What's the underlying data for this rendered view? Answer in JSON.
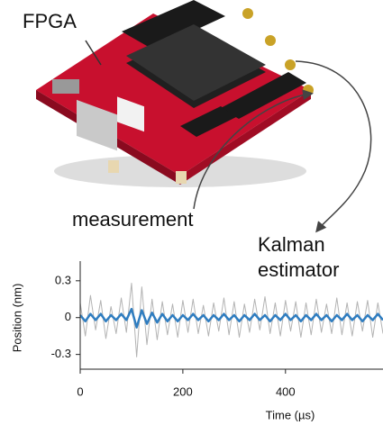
{
  "chart_data": {
    "type": "line",
    "annotation": "FPGA",
    "xlabel": "Time (µs)",
    "ylabel": "Position (nm)",
    "x": [
      0,
      10,
      20,
      30,
      40,
      50,
      60,
      70,
      80,
      90,
      100,
      110,
      120,
      130,
      140,
      150,
      160,
      170,
      180,
      190,
      200,
      210,
      220,
      230,
      240,
      250,
      260,
      270,
      280,
      290,
      300,
      310,
      320,
      330,
      340,
      350,
      360,
      370,
      380,
      390,
      400,
      410,
      420,
      430,
      440,
      450,
      460,
      470,
      480,
      490,
      500,
      510,
      520,
      530,
      540,
      550,
      560,
      570,
      580,
      590
    ],
    "series": [
      {
        "name": "measurement",
        "color": "#b3b3b3",
        "values": [
          0.12,
          -0.15,
          0.18,
          -0.1,
          0.14,
          -0.17,
          0.09,
          -0.13,
          0.16,
          -0.12,
          0.28,
          -0.32,
          0.25,
          -0.22,
          0.15,
          -0.18,
          0.13,
          -0.14,
          0.11,
          -0.16,
          0.14,
          -0.12,
          0.15,
          -0.13,
          0.1,
          -0.15,
          0.12,
          -0.11,
          0.16,
          -0.14,
          0.13,
          -0.16,
          0.11,
          -0.12,
          0.15,
          -0.1,
          0.17,
          -0.13,
          0.12,
          -0.15,
          0.14,
          -0.11,
          0.13,
          -0.16,
          0.12,
          -0.14,
          0.15,
          -0.12,
          0.11,
          -0.13,
          0.16,
          -0.14,
          0.12,
          -0.15,
          0.13,
          -0.11,
          0.14,
          -0.16,
          0.12,
          -0.13
        ]
      },
      {
        "name": "Kalman estimator",
        "color": "#2f7dc0",
        "values": [
          0.02,
          -0.03,
          0.03,
          -0.02,
          0.03,
          -0.03,
          0.02,
          -0.02,
          0.03,
          -0.02,
          0.07,
          -0.08,
          0.06,
          -0.05,
          0.04,
          -0.04,
          0.03,
          -0.03,
          0.02,
          -0.03,
          0.02,
          -0.02,
          0.03,
          -0.02,
          0.02,
          -0.03,
          0.02,
          -0.02,
          0.03,
          -0.02,
          0.02,
          -0.03,
          0.02,
          -0.02,
          0.03,
          -0.02,
          0.02,
          -0.03,
          0.02,
          -0.02,
          0.03,
          -0.02,
          0.02,
          -0.03,
          0.02,
          -0.02,
          0.03,
          -0.02,
          0.02,
          -0.03,
          0.02,
          -0.02,
          0.03,
          -0.02,
          0.02,
          -0.03,
          0.02,
          -0.02,
          0.03,
          -0.02
        ]
      }
    ],
    "xlim": [
      0,
      590
    ],
    "xticks": [
      0,
      200,
      400
    ],
    "ylim": [
      -0.42,
      0.46
    ],
    "yticks": [
      0.3,
      0,
      -0.3
    ]
  }
}
